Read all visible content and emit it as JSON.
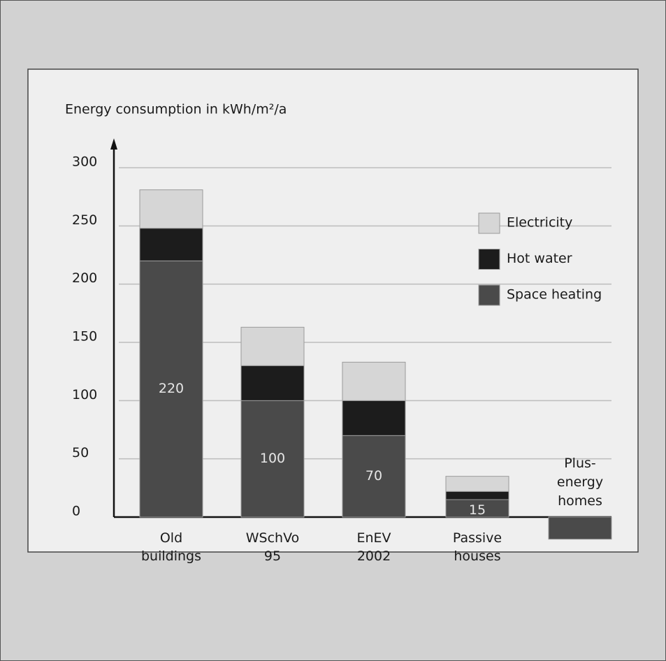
{
  "chart_data": {
    "type": "stacked_bar",
    "y_axis_label": "Energy consumption in kWh/m²/a",
    "categories": [
      [
        "Old",
        "buildings"
      ],
      [
        "WSchVo",
        "95"
      ],
      [
        "EnEV",
        "2002"
      ],
      [
        "Passive",
        "houses"
      ],
      [
        "Plus-",
        "energy",
        "homes"
      ]
    ],
    "series": [
      {
        "name": "Space heating",
        "color": "#4a4a4a",
        "values": [
          220,
          100,
          70,
          15,
          -19
        ],
        "value_labels": [
          "220",
          "100",
          "70",
          "15",
          null
        ]
      },
      {
        "name": "Hot water",
        "color": "#1c1c1c",
        "values": [
          28,
          30,
          30,
          7,
          null
        ]
      },
      {
        "name": "Electricity",
        "color": "#d6d6d6",
        "values": [
          33,
          33,
          33,
          13,
          null
        ]
      }
    ],
    "ylim": [
      -25,
      300
    ],
    "yticks": [
      0,
      50,
      100,
      150,
      200,
      250,
      300
    ],
    "grid": true
  }
}
